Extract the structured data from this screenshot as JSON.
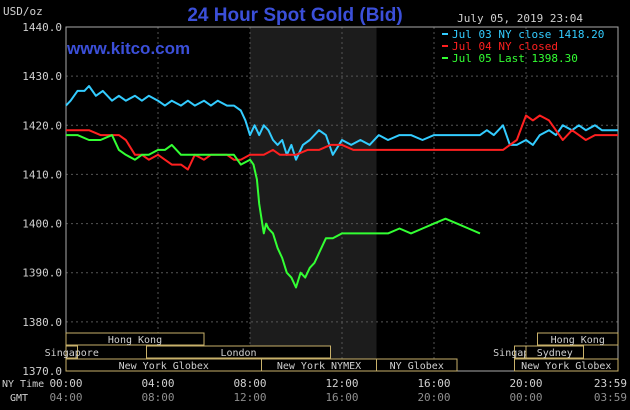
{
  "chart_data": {
    "type": "line",
    "title": "24 Hour Spot Gold (Bid)",
    "site": "www.kitco.com",
    "unit_label": "USD/oz",
    "timestamp": "July 05, 2019 23:04",
    "ylim": [
      1370,
      1440
    ],
    "y_ticks": [
      "1440.0",
      "1430.0",
      "1420.0",
      "1410.0",
      "1400.0",
      "1390.0",
      "1380.0",
      "1370.0"
    ],
    "y_tick_values": [
      1440,
      1430,
      1420,
      1410,
      1400,
      1390,
      1380,
      1370
    ],
    "xlim": [
      0,
      24
    ],
    "x_row1_label": "NY Time",
    "x_row2_label": "GMT",
    "x_ticks": [
      {
        "h": 0,
        "ny": "00:00",
        "gmt": "04:00"
      },
      {
        "h": 4,
        "ny": "04:00",
        "gmt": "08:00"
      },
      {
        "h": 8,
        "ny": "08:00",
        "gmt": "12:00"
      },
      {
        "h": 12,
        "ny": "12:00",
        "gmt": "16:00"
      },
      {
        "h": 16,
        "ny": "16:00",
        "gmt": "20:00"
      },
      {
        "h": 20,
        "ny": "20:00",
        "gmt": "00:00"
      },
      {
        "h": 24,
        "ny": "23:59",
        "gmt": "03:59"
      }
    ],
    "highlight_range": [
      8.0,
      13.5
    ],
    "sessions": [
      {
        "label": "Hong Kong",
        "start": 0,
        "end": 6.0,
        "row": 0
      },
      {
        "label": "Singapore",
        "start": 0,
        "end": 0.5,
        "row": 1
      },
      {
        "label": "London",
        "start": 3.5,
        "end": 11.5,
        "row": 1
      },
      {
        "label": "New York Globex",
        "start": 0,
        "end": 8.5,
        "row": 2
      },
      {
        "label": "New York NYMEX",
        "start": 8.5,
        "end": 13.5,
        "row": 2
      },
      {
        "label": "NY Globex",
        "start": 13.5,
        "end": 17.0,
        "row": 2
      },
      {
        "label": "Hong Kong",
        "start": 20.5,
        "end": 24.0,
        "row": 0
      },
      {
        "label": "Singapore",
        "start": 19.5,
        "end": 20.0,
        "row": 1
      },
      {
        "label": "Sydney",
        "start": 20.0,
        "end": 22.5,
        "row": 1
      },
      {
        "label": "New York Globex",
        "start": 19.5,
        "end": 24.0,
        "row": 2
      }
    ],
    "series": [
      {
        "name": "Jul 03 NY close 1418.20",
        "color": "#33ccff",
        "x": [
          0,
          0.2,
          0.5,
          0.8,
          1.0,
          1.3,
          1.6,
          2.0,
          2.3,
          2.6,
          3.0,
          3.3,
          3.6,
          4.0,
          4.3,
          4.6,
          5.0,
          5.3,
          5.6,
          6.0,
          6.3,
          6.6,
          7.0,
          7.3,
          7.6,
          7.8,
          8.0,
          8.2,
          8.4,
          8.6,
          8.8,
          9.0,
          9.2,
          9.4,
          9.6,
          9.8,
          10.0,
          10.3,
          10.6,
          11.0,
          11.3,
          11.6,
          12.0,
          12.4,
          12.8,
          13.2,
          13.6,
          14.0,
          14.5,
          15.0,
          15.5,
          16.0,
          16.5,
          17.0,
          17.5,
          18.0,
          18.3,
          18.6,
          19.0,
          19.3,
          19.6,
          20.0,
          20.3,
          20.6,
          21.0,
          21.3,
          21.6,
          22.0,
          22.3,
          22.6,
          23.0,
          23.3,
          23.6,
          24.0
        ],
        "y": [
          1424,
          1425,
          1427,
          1427,
          1428,
          1426,
          1427,
          1425,
          1426,
          1425,
          1426,
          1425,
          1426,
          1425,
          1424,
          1425,
          1424,
          1425,
          1424,
          1425,
          1424,
          1425,
          1424,
          1424,
          1423,
          1421,
          1418,
          1420,
          1418,
          1420,
          1419,
          1417,
          1416,
          1417,
          1414,
          1416,
          1413,
          1416,
          1417,
          1419,
          1418,
          1414,
          1417,
          1416,
          1417,
          1416,
          1418,
          1417,
          1418,
          1418,
          1417,
          1418,
          1418,
          1418,
          1418,
          1418,
          1419,
          1418,
          1420,
          1416,
          1416,
          1417,
          1416,
          1418,
          1419,
          1418,
          1420,
          1419,
          1420,
          1419,
          1420,
          1419,
          1419,
          1419
        ]
      },
      {
        "name": "Jul 04 NY closed",
        "color": "#ff2020",
        "x": [
          0,
          0.5,
          1.0,
          1.5,
          2.0,
          2.3,
          2.6,
          3.0,
          3.3,
          3.6,
          4.0,
          4.3,
          4.6,
          5.0,
          5.3,
          5.6,
          6.0,
          6.3,
          6.6,
          7.0,
          7.3,
          7.6,
          8.0,
          8.3,
          8.6,
          9.0,
          9.3,
          9.6,
          10.0,
          10.5,
          11.0,
          11.5,
          12.0,
          12.5,
          13.0,
          14.0,
          15.0,
          16.0,
          17.0,
          17.5,
          18.0,
          18.3,
          18.6,
          19.0,
          19.3,
          19.6,
          20.0,
          20.3,
          20.6,
          21.0,
          21.3,
          21.6,
          22.0,
          22.3,
          22.6,
          23.0,
          23.3,
          23.6,
          24.0
        ],
        "y": [
          1419,
          1419,
          1419,
          1418,
          1418,
          1418,
          1417,
          1414,
          1414,
          1413,
          1414,
          1413,
          1412,
          1412,
          1411,
          1414,
          1413,
          1414,
          1414,
          1414,
          1413,
          1413,
          1414,
          1414,
          1414,
          1415,
          1414,
          1414,
          1414,
          1415,
          1415,
          1416,
          1416,
          1415,
          1415,
          1415,
          1415,
          1415,
          1415,
          1415,
          1415,
          1415,
          1415,
          1415,
          1416,
          1417,
          1422,
          1421,
          1422,
          1421,
          1419,
          1417,
          1419,
          1418,
          1417,
          1418,
          1418,
          1418,
          1418
        ]
      },
      {
        "name": "Jul 05 Last 1398.30",
        "color": "#33ff33",
        "x": [
          0,
          0.5,
          1.0,
          1.5,
          2.0,
          2.3,
          2.6,
          3.0,
          3.3,
          3.6,
          4.0,
          4.3,
          4.6,
          5.0,
          5.3,
          5.6,
          6.0,
          6.3,
          6.6,
          7.0,
          7.3,
          7.6,
          8.0,
          8.15,
          8.3,
          8.4,
          8.5,
          8.6,
          8.7,
          8.8,
          9.0,
          9.2,
          9.4,
          9.6,
          9.8,
          10.0,
          10.2,
          10.4,
          10.6,
          10.8,
          11.0,
          11.3,
          11.6,
          12.0,
          12.3,
          12.6,
          13.0,
          13.5,
          14.0,
          14.5,
          15.0,
          15.5,
          16.0,
          16.5,
          17.0,
          17.5,
          18.0
        ],
        "y": [
          1418,
          1418,
          1417,
          1417,
          1418,
          1415,
          1414,
          1413,
          1414,
          1414,
          1415,
          1415,
          1416,
          1414,
          1414,
          1414,
          1414,
          1414,
          1414,
          1414,
          1414,
          1412,
          1413,
          1412,
          1409,
          1404,
          1401,
          1398,
          1400,
          1399,
          1398,
          1395,
          1393,
          1390,
          1389,
          1387,
          1390,
          1389,
          1391,
          1392,
          1394,
          1397,
          1397,
          1398,
          1398,
          1398,
          1398,
          1398,
          1398,
          1399,
          1398,
          1399,
          1400,
          1401,
          1400,
          1399,
          1398
        ]
      }
    ]
  }
}
